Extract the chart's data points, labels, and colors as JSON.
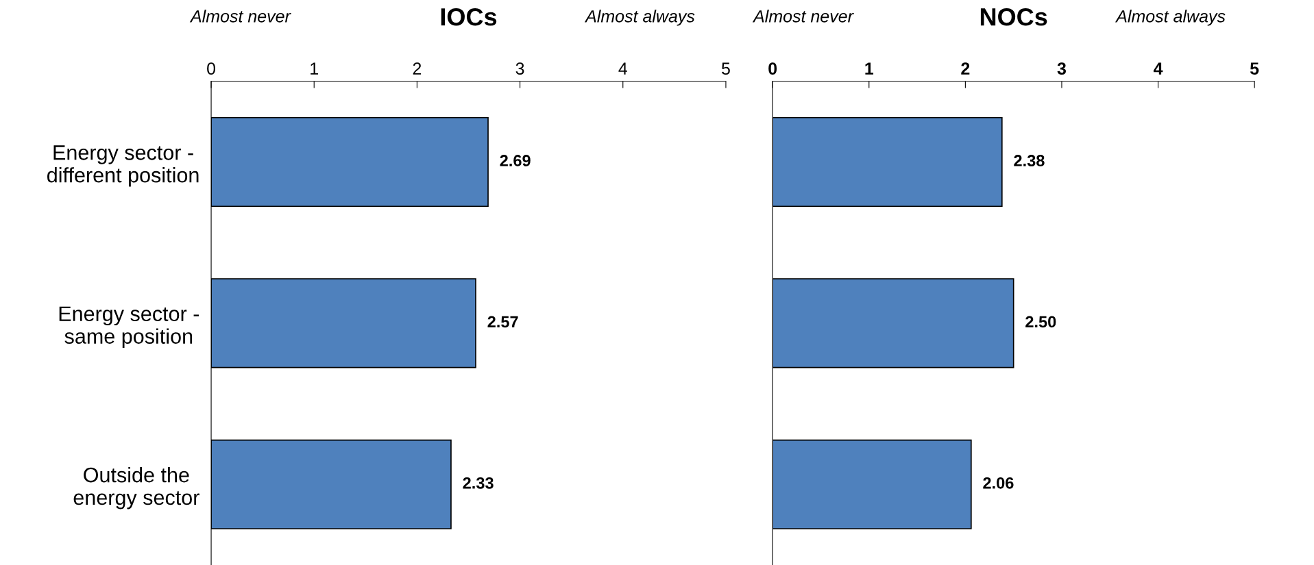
{
  "chart_data": [
    {
      "type": "bar",
      "orientation": "horizontal",
      "title": "IOCs",
      "categories": [
        "Energy sector -\ndifferent position",
        "Energy sector -\nsame position",
        "Outside the\nenergy sector"
      ],
      "values": [
        2.69,
        2.57,
        2.33
      ],
      "value_labels": [
        "2.69",
        "2.57",
        "2.33"
      ],
      "color": "#4f81bd",
      "xlim": [
        0,
        5
      ],
      "xticks": [
        0,
        1,
        2,
        3,
        4,
        5
      ],
      "grid": false,
      "legend": false,
      "annotations": [
        "Almost never",
        "Almost always"
      ]
    },
    {
      "type": "bar",
      "orientation": "horizontal",
      "title": "NOCs",
      "categories": [
        null,
        null,
        null
      ],
      "values": [
        2.38,
        2.5,
        2.06
      ],
      "value_labels": [
        "2.38",
        "2.50",
        "2.06"
      ],
      "color": "#4f81bd",
      "xlim": [
        0,
        5
      ],
      "xticks": [
        0,
        1,
        2,
        3,
        4,
        5
      ],
      "grid": false,
      "legend": false,
      "tick_labels": "x",
      "annotations": [
        "Almost never",
        "Almost always"
      ]
    }
  ]
}
